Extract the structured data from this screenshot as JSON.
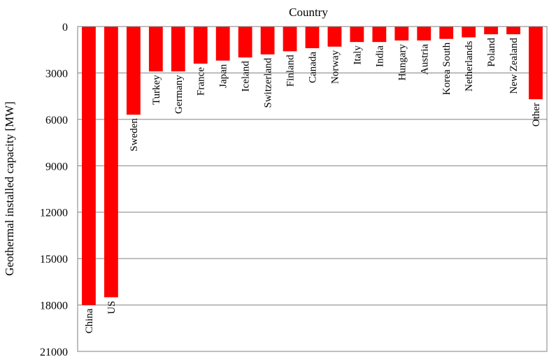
{
  "chart_data": {
    "type": "bar",
    "orientation": "downward",
    "title": "Country",
    "xlabel": "Country",
    "ylabel": "Geothermal installed capacity [MW]",
    "ylim": [
      0,
      21000
    ],
    "yticks": [
      "0",
      "3000",
      "6000",
      "9000",
      "12000",
      "15000",
      "18000",
      "21000"
    ],
    "grid": true,
    "categories": [
      "China",
      "US",
      "Sweden",
      "Turkey",
      "Germany",
      "France",
      "Japan",
      "Iceland",
      "Switzerland",
      "Finland",
      "Canada",
      "Norway",
      "Italy",
      "India",
      "Hungary",
      "Austria",
      "Korea South",
      "Netherlands",
      "Poland",
      "New Zealand",
      "Other"
    ],
    "values": [
      18000,
      17500,
      5700,
      2900,
      2900,
      2400,
      2200,
      2000,
      1800,
      1600,
      1400,
      1300,
      1000,
      1000,
      900,
      900,
      800,
      700,
      500,
      500,
      4700
    ],
    "bar_color": "#ff0000"
  }
}
